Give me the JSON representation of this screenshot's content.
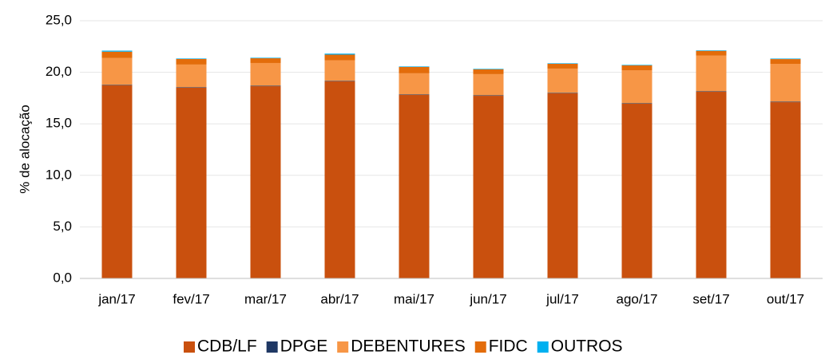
{
  "chart_data": {
    "type": "stacked_bar",
    "y_label": "% de alocação",
    "categories": [
      "jan/17",
      "fev/17",
      "mar/17",
      "abr/17",
      "mai/17",
      "jun/17",
      "jul/17",
      "ago/17",
      "set/17",
      "out/17"
    ],
    "series": [
      {
        "name": "CDB/LF",
        "color": "#c9500e",
        "values": [
          18.73,
          18.5,
          18.65,
          19.12,
          17.8,
          17.72,
          17.96,
          16.95,
          18.11,
          17.1
        ]
      },
      {
        "name": "DPGE",
        "color": "#1f3864",
        "values": [
          0.05,
          0.05,
          0.05,
          0.05,
          0.05,
          0.05,
          0.05,
          0.05,
          0.05,
          0.05
        ]
      },
      {
        "name": "DEBENTURES",
        "color": "#f79646",
        "values": [
          2.6,
          2.2,
          2.2,
          2.0,
          2.05,
          2.05,
          2.35,
          3.2,
          3.45,
          3.67
        ]
      },
      {
        "name": "FIDC",
        "color": "#e36c0a",
        "values": [
          0.62,
          0.54,
          0.46,
          0.54,
          0.62,
          0.47,
          0.46,
          0.47,
          0.47,
          0.46
        ]
      },
      {
        "name": "OUTROS",
        "color": "#00b0f0",
        "values": [
          0.1,
          0.05,
          0.05,
          0.1,
          0.05,
          0.05,
          0.05,
          0.05,
          0.05,
          0.05
        ]
      }
    ],
    "ylim": [
      0,
      25
    ],
    "yticks": [
      {
        "value": 0,
        "label": "0,0"
      },
      {
        "value": 5,
        "label": "5,0"
      },
      {
        "value": 10,
        "label": "10,0"
      },
      {
        "value": 15,
        "label": "15,0"
      },
      {
        "value": 20,
        "label": "20,0"
      },
      {
        "value": 25,
        "label": "25,0"
      }
    ],
    "grid": true
  }
}
